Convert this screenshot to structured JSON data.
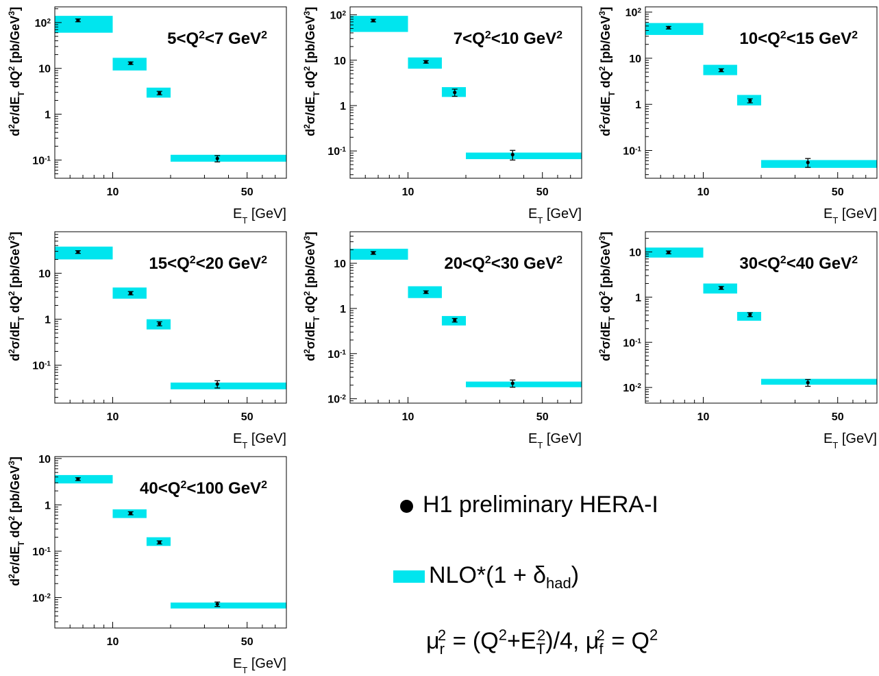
{
  "legend": {
    "data_label": "H1 preliminary HERA-I",
    "nlo_main": "NLO*(1 + δ",
    "nlo_sub": "had",
    "nlo_close": ")",
    "scale_mu": "μ",
    "scale_r": "r",
    "scale_f": "f",
    "scale_2": "2",
    "scale_eq": " = (Q",
    "scale_plus": "+E",
    "scale_T": "T",
    "scale_rest": ")/4, μ",
    "scale_eq2": " = Q"
  },
  "colors": {
    "band": "#00e5ee",
    "points": "#000000"
  },
  "chart_data": [
    {
      "type": "scatter",
      "title_parts": [
        "5<Q",
        "2",
        "<7 GeV",
        "2"
      ],
      "xlabel": [
        "E",
        "T",
        " [GeV]"
      ],
      "ylabel": [
        "d",
        "2",
        "σ/dE",
        "T",
        " dQ",
        "2",
        " [pb/GeV",
        "3",
        "]"
      ],
      "xscale": "log",
      "yscale": "log",
      "xlim": [
        5,
        80
      ],
      "ylim": [
        0.04,
        220
      ],
      "xticks": [
        {
          "v": 10,
          "label": "10"
        },
        {
          "v": 50,
          "label": "50"
        }
      ],
      "yticks": [
        {
          "v": 100,
          "b": "10",
          "e": "2"
        },
        {
          "v": 10,
          "b": "10",
          "e": ""
        },
        {
          "v": 1,
          "b": "1",
          "e": ""
        },
        {
          "v": 0.1,
          "b": "10",
          "e": "-1"
        }
      ],
      "bins": [
        {
          "x": [
            5,
            10
          ],
          "nlo": [
            60,
            140
          ],
          "point": {
            "x": 6.6,
            "y": 112,
            "err": 8
          }
        },
        {
          "x": [
            10,
            15
          ],
          "nlo": [
            9,
            17
          ],
          "point": {
            "x": 12.4,
            "y": 13,
            "err": 0.8
          }
        },
        {
          "x": [
            15,
            20
          ],
          "nlo": [
            2.3,
            3.8
          ],
          "point": {
            "x": 17.5,
            "y": 2.9,
            "err": 0.25
          }
        },
        {
          "x": [
            20,
            80
          ],
          "nlo": [
            0.092,
            0.13
          ],
          "point": {
            "x": 35,
            "y": 0.108,
            "err": 0.017
          }
        }
      ]
    },
    {
      "type": "scatter",
      "title_parts": [
        "7<Q",
        "2",
        "<10 GeV",
        "2"
      ],
      "xlabel": [
        "E",
        "T",
        " [GeV]"
      ],
      "ylabel": [
        "d",
        "2",
        "σ/dE",
        "T",
        " dQ",
        "2",
        " [pb/GeV",
        "3",
        "]"
      ],
      "xscale": "log",
      "yscale": "log",
      "xlim": [
        5,
        80
      ],
      "ylim": [
        0.025,
        150
      ],
      "xticks": [
        {
          "v": 10,
          "label": "10"
        },
        {
          "v": 50,
          "label": "50"
        }
      ],
      "yticks": [
        {
          "v": 100,
          "b": "10",
          "e": "2"
        },
        {
          "v": 10,
          "b": "10",
          "e": ""
        },
        {
          "v": 1,
          "b": "1",
          "e": ""
        },
        {
          "v": 0.1,
          "b": "10",
          "e": "-1"
        }
      ],
      "bins": [
        {
          "x": [
            5,
            10
          ],
          "nlo": [
            42,
            95
          ],
          "point": {
            "x": 6.6,
            "y": 75,
            "err": 5
          }
        },
        {
          "x": [
            10,
            15
          ],
          "nlo": [
            6.5,
            11.5
          ],
          "point": {
            "x": 12.4,
            "y": 9.2,
            "err": 0.6
          }
        },
        {
          "x": [
            15,
            20
          ],
          "nlo": [
            1.55,
            2.55
          ],
          "point": {
            "x": 17.5,
            "y": 1.95,
            "err": 0.35
          }
        },
        {
          "x": [
            20,
            80
          ],
          "nlo": [
            0.066,
            0.092
          ],
          "point": {
            "x": 35,
            "y": 0.083,
            "err": 0.02
          }
        }
      ]
    },
    {
      "type": "scatter",
      "title_parts": [
        "10<Q",
        "2",
        "<15 GeV",
        "2"
      ],
      "xlabel": [
        "E",
        "T",
        " [GeV]"
      ],
      "ylabel": [
        "d",
        "2",
        "σ/dE",
        "T",
        " dQ",
        "2",
        " [pb/GeV",
        "3",
        "]"
      ],
      "xscale": "log",
      "yscale": "log",
      "xlim": [
        5,
        80
      ],
      "ylim": [
        0.025,
        130
      ],
      "xticks": [
        {
          "v": 10,
          "label": "10"
        },
        {
          "v": 50,
          "label": "50"
        }
      ],
      "yticks": [
        {
          "v": 100,
          "b": "10",
          "e": "2"
        },
        {
          "v": 10,
          "b": "10",
          "e": ""
        },
        {
          "v": 1,
          "b": "1",
          "e": ""
        },
        {
          "v": 0.1,
          "b": "10",
          "e": "-1"
        }
      ],
      "bins": [
        {
          "x": [
            5,
            10
          ],
          "nlo": [
            32,
            58
          ],
          "point": {
            "x": 6.6,
            "y": 46,
            "err": 3
          }
        },
        {
          "x": [
            10,
            15
          ],
          "nlo": [
            4.3,
            7.2
          ],
          "point": {
            "x": 12.4,
            "y": 5.5,
            "err": 0.4
          }
        },
        {
          "x": [
            15,
            20
          ],
          "nlo": [
            0.95,
            1.6
          ],
          "point": {
            "x": 17.5,
            "y": 1.2,
            "err": 0.12
          }
        },
        {
          "x": [
            20,
            80
          ],
          "nlo": [
            0.042,
            0.062
          ],
          "point": {
            "x": 35,
            "y": 0.055,
            "err": 0.012
          }
        }
      ]
    },
    {
      "type": "scatter",
      "title_parts": [
        "15<Q",
        "2",
        "<20 GeV",
        "2"
      ],
      "xlabel": [
        "E",
        "T",
        " [GeV]"
      ],
      "ylabel": [
        "d",
        "2",
        "σ/dE",
        "T",
        " dQ",
        "2",
        " [pb/GeV",
        "3",
        "]"
      ],
      "xscale": "log",
      "yscale": "log",
      "xlim": [
        5,
        80
      ],
      "ylim": [
        0.015,
        80
      ],
      "xticks": [
        {
          "v": 10,
          "label": "10"
        },
        {
          "v": 50,
          "label": "50"
        }
      ],
      "yticks": [
        {
          "v": 10,
          "b": "10",
          "e": ""
        },
        {
          "v": 1,
          "b": "1",
          "e": ""
        },
        {
          "v": 0.1,
          "b": "10",
          "e": "-1"
        }
      ],
      "bins": [
        {
          "x": [
            5,
            10
          ],
          "nlo": [
            20,
            38
          ],
          "point": {
            "x": 6.6,
            "y": 29,
            "err": 2
          }
        },
        {
          "x": [
            10,
            15
          ],
          "nlo": [
            2.8,
            4.9
          ],
          "point": {
            "x": 12.4,
            "y": 3.7,
            "err": 0.3
          }
        },
        {
          "x": [
            15,
            20
          ],
          "nlo": [
            0.6,
            1.0
          ],
          "point": {
            "x": 17.5,
            "y": 0.8,
            "err": 0.08
          }
        },
        {
          "x": [
            20,
            80
          ],
          "nlo": [
            0.03,
            0.042
          ],
          "point": {
            "x": 35,
            "y": 0.039,
            "err": 0.007
          }
        }
      ]
    },
    {
      "type": "scatter",
      "title_parts": [
        "20<Q",
        "2",
        "<30 GeV",
        "2"
      ],
      "xlabel": [
        "E",
        "T",
        " [GeV]"
      ],
      "ylabel": [
        "d",
        "2",
        "σ/dE",
        "T",
        " dQ",
        "2",
        " [pb/GeV",
        "3",
        "]"
      ],
      "xscale": "log",
      "yscale": "log",
      "xlim": [
        5,
        80
      ],
      "ylim": [
        0.008,
        50
      ],
      "xticks": [
        {
          "v": 10,
          "label": "10"
        },
        {
          "v": 50,
          "label": "50"
        }
      ],
      "yticks": [
        {
          "v": 10,
          "b": "10",
          "e": ""
        },
        {
          "v": 1,
          "b": "1",
          "e": ""
        },
        {
          "v": 0.1,
          "b": "10",
          "e": "-1"
        },
        {
          "v": 0.01,
          "b": "10",
          "e": "-2"
        }
      ],
      "bins": [
        {
          "x": [
            5,
            10
          ],
          "nlo": [
            12,
            21
          ],
          "point": {
            "x": 6.6,
            "y": 17,
            "err": 1.2
          }
        },
        {
          "x": [
            10,
            15
          ],
          "nlo": [
            1.7,
            3.1
          ],
          "point": {
            "x": 12.4,
            "y": 2.3,
            "err": 0.15
          }
        },
        {
          "x": [
            15,
            20
          ],
          "nlo": [
            0.42,
            0.68
          ],
          "point": {
            "x": 17.5,
            "y": 0.55,
            "err": 0.05
          }
        },
        {
          "x": [
            20,
            80
          ],
          "nlo": [
            0.018,
            0.024
          ],
          "point": {
            "x": 35,
            "y": 0.022,
            "err": 0.004
          }
        }
      ]
    },
    {
      "type": "scatter",
      "title_parts": [
        "30<Q",
        "2",
        "<40 GeV",
        "2"
      ],
      "xlabel": [
        "E",
        "T",
        " [GeV]"
      ],
      "ylabel": [
        "d",
        "2",
        "σ/dE",
        "T",
        " dQ",
        "2",
        " [pb/GeV",
        "3",
        "]"
      ],
      "xscale": "log",
      "yscale": "log",
      "xlim": [
        5,
        80
      ],
      "ylim": [
        0.0045,
        28
      ],
      "xticks": [
        {
          "v": 10,
          "label": "10"
        },
        {
          "v": 50,
          "label": "50"
        }
      ],
      "yticks": [
        {
          "v": 10,
          "b": "10",
          "e": ""
        },
        {
          "v": 1,
          "b": "1",
          "e": ""
        },
        {
          "v": 0.1,
          "b": "10",
          "e": "-1"
        },
        {
          "v": 0.01,
          "b": "10",
          "e": "-2"
        }
      ],
      "bins": [
        {
          "x": [
            5,
            10
          ],
          "nlo": [
            7.5,
            12.5
          ],
          "point": {
            "x": 6.6,
            "y": 9.8,
            "err": 0.7
          }
        },
        {
          "x": [
            10,
            15
          ],
          "nlo": [
            1.2,
            2.0
          ],
          "point": {
            "x": 12.4,
            "y": 1.6,
            "err": 0.12
          }
        },
        {
          "x": [
            15,
            20
          ],
          "nlo": [
            0.3,
            0.47
          ],
          "point": {
            "x": 17.5,
            "y": 0.41,
            "err": 0.04
          }
        },
        {
          "x": [
            20,
            80
          ],
          "nlo": [
            0.0115,
            0.0155
          ],
          "point": {
            "x": 35,
            "y": 0.0128,
            "err": 0.0022
          }
        }
      ]
    },
    {
      "type": "scatter",
      "title_parts": [
        "40<Q",
        "2",
        "<100 GeV",
        "2"
      ],
      "xlabel": [
        "E",
        "T",
        " [GeV]"
      ],
      "ylabel": [
        "d",
        "2",
        "σ/dE",
        "T",
        " dQ",
        "2",
        " [pb/GeV",
        "3",
        "]"
      ],
      "xscale": "log",
      "yscale": "log",
      "xlim": [
        5,
        80
      ],
      "ylim": [
        0.0022,
        11
      ],
      "xticks": [
        {
          "v": 10,
          "label": "10"
        },
        {
          "v": 50,
          "label": "50"
        }
      ],
      "yticks": [
        {
          "v": 10,
          "b": "10",
          "e": ""
        },
        {
          "v": 1,
          "b": "1",
          "e": ""
        },
        {
          "v": 0.1,
          "b": "10",
          "e": "-1"
        },
        {
          "v": 0.01,
          "b": "10",
          "e": "-2"
        }
      ],
      "bins": [
        {
          "x": [
            5,
            10
          ],
          "nlo": [
            2.9,
            4.4
          ],
          "point": {
            "x": 6.6,
            "y": 3.6,
            "err": 0.25
          }
        },
        {
          "x": [
            10,
            15
          ],
          "nlo": [
            0.52,
            0.8
          ],
          "point": {
            "x": 12.4,
            "y": 0.66,
            "err": 0.05
          }
        },
        {
          "x": [
            15,
            20
          ],
          "nlo": [
            0.13,
            0.2
          ],
          "point": {
            "x": 17.5,
            "y": 0.155,
            "err": 0.012
          }
        },
        {
          "x": [
            20,
            80
          ],
          "nlo": [
            0.0058,
            0.0078
          ],
          "point": {
            "x": 35,
            "y": 0.0072,
            "err": 0.0008
          }
        }
      ]
    }
  ]
}
